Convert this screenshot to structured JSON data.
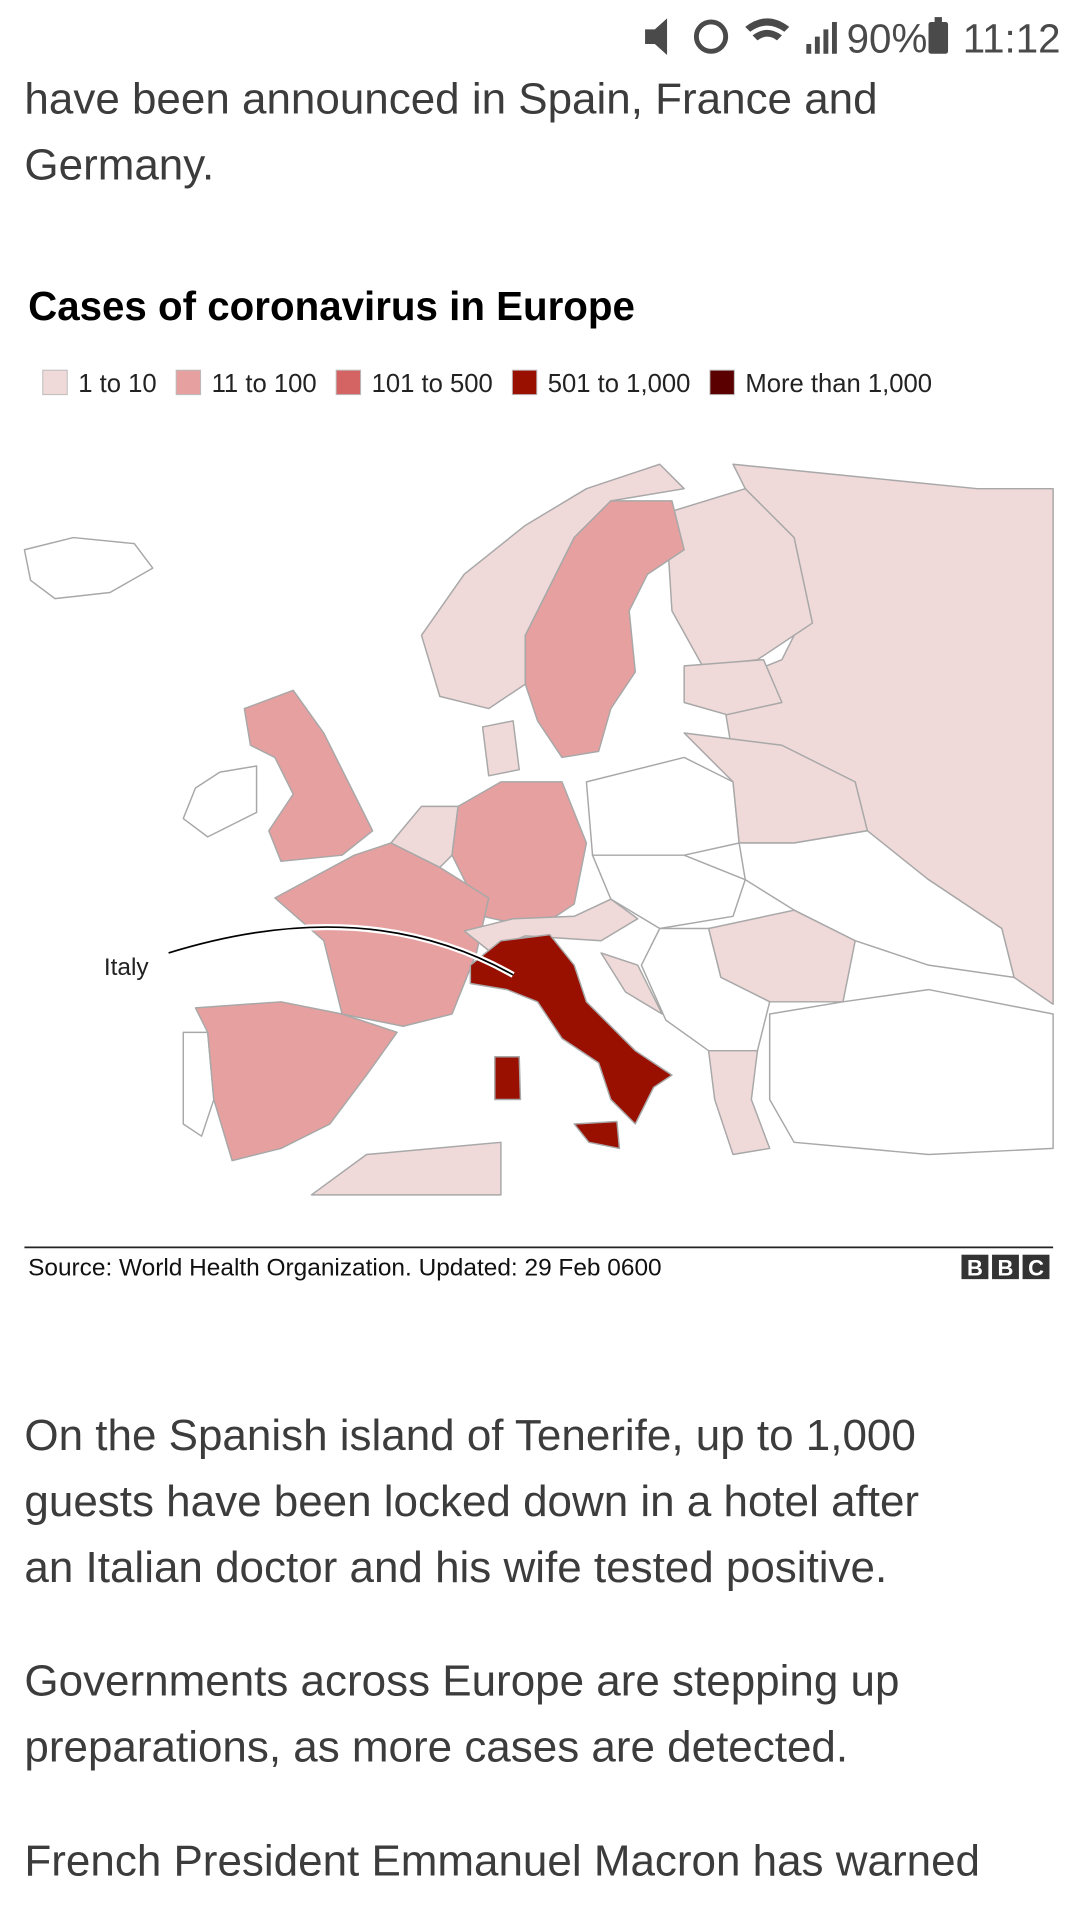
{
  "status_bar": {
    "battery": "90%",
    "time": "11:12"
  },
  "intro_lines": [
    "have been announced in Spain, France and",
    "Germany."
  ],
  "map": {
    "title": "Cases of coronavirus in Europe",
    "legend": [
      {
        "label": "1 to 10",
        "color": "#efd9d9"
      },
      {
        "label": "11 to 100",
        "color": "#e6a0a0"
      },
      {
        "label": "101 to 500",
        "color": "#d46464"
      },
      {
        "label": "501 to 1,000",
        "color": "#990f00"
      },
      {
        "label": "More than 1,000",
        "color": "#5a0000"
      }
    ],
    "annotation": "Italy",
    "source": "Source: World Health Organization. Updated: 29 Feb 0600",
    "logo": [
      "B",
      "B",
      "C"
    ]
  },
  "paragraphs": [
    [
      "On the Spanish island of Tenerife, up to 1,000",
      "guests have been locked down in a hotel after",
      "an Italian doctor and his wife tested positive."
    ],
    [
      "Governments across Europe are stepping up",
      "preparations, as more cases are detected."
    ],
    [
      "French President Emmanuel Macron has warned"
    ]
  ]
}
